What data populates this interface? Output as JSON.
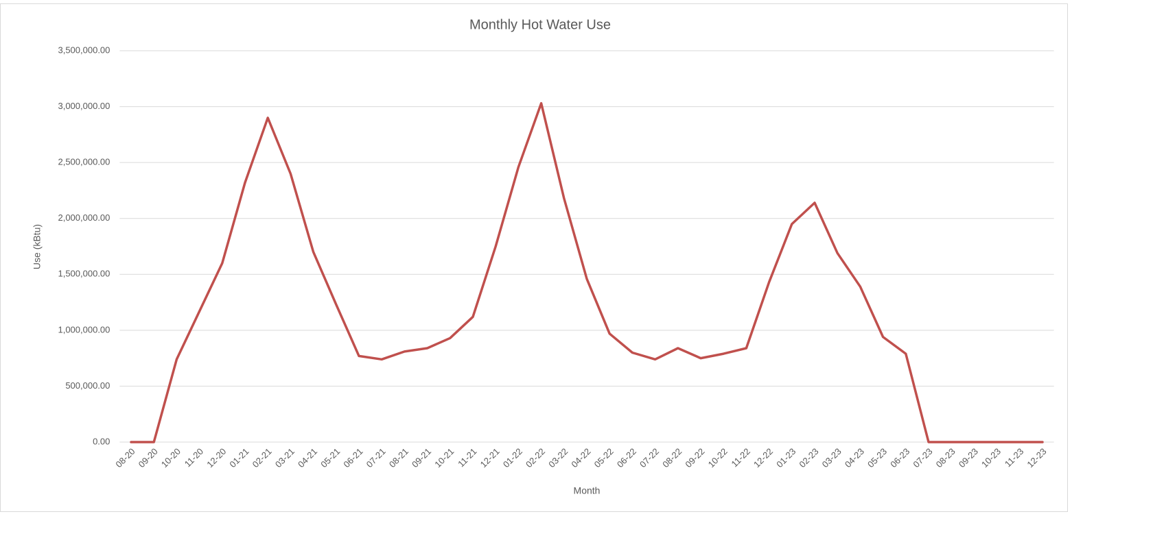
{
  "chart_data": {
    "type": "line",
    "title": "Monthly Hot Water Use",
    "x_label": "Month",
    "y_label": "Use (kBtu)",
    "categories": [
      "08-20",
      "09-20",
      "10-20",
      "11-20",
      "12-20",
      "01-21",
      "02-21",
      "03-21",
      "04-21",
      "05-21",
      "06-21",
      "07-21",
      "08-21",
      "09-21",
      "10-21",
      "11-21",
      "12-21",
      "01-22",
      "02-22",
      "03-22",
      "04-22",
      "05-22",
      "06-22",
      "07-22",
      "08-22",
      "09-22",
      "10-22",
      "11-22",
      "12-22",
      "01-23",
      "02-23",
      "03-23",
      "04-23",
      "05-23",
      "06-23",
      "07-23",
      "08-23",
      "09-23",
      "10-23",
      "11-23",
      "12-23"
    ],
    "series": [
      {
        "name": "Use (kBtu)",
        "color": "#c0504d",
        "values": [
          0,
          0,
          740000,
          1170000,
          1600000,
          2320000,
          2900000,
          2400000,
          1700000,
          1230000,
          770000,
          740000,
          810000,
          840000,
          930000,
          1120000,
          1750000,
          2460000,
          3030000,
          2180000,
          1460000,
          970000,
          800000,
          740000,
          840000,
          750000,
          790000,
          840000,
          1430000,
          1950000,
          2140000,
          1690000,
          1390000,
          940000,
          790000,
          0,
          0,
          0,
          0,
          0,
          0
        ]
      }
    ],
    "ylim": [
      0,
      3500000
    ],
    "yticks": [
      {
        "value": 0,
        "label": "0.00"
      },
      {
        "value": 500000,
        "label": "500,000.00"
      },
      {
        "value": 1000000,
        "label": "1,000,000.00"
      },
      {
        "value": 1500000,
        "label": "1,500,000.00"
      },
      {
        "value": 2000000,
        "label": "2,000,000.00"
      },
      {
        "value": 2500000,
        "label": "2,500,000.00"
      },
      {
        "value": 3000000,
        "label": "3,000,000.00"
      },
      {
        "value": 3500000,
        "label": "3,500,000.00"
      }
    ],
    "grid": true
  }
}
